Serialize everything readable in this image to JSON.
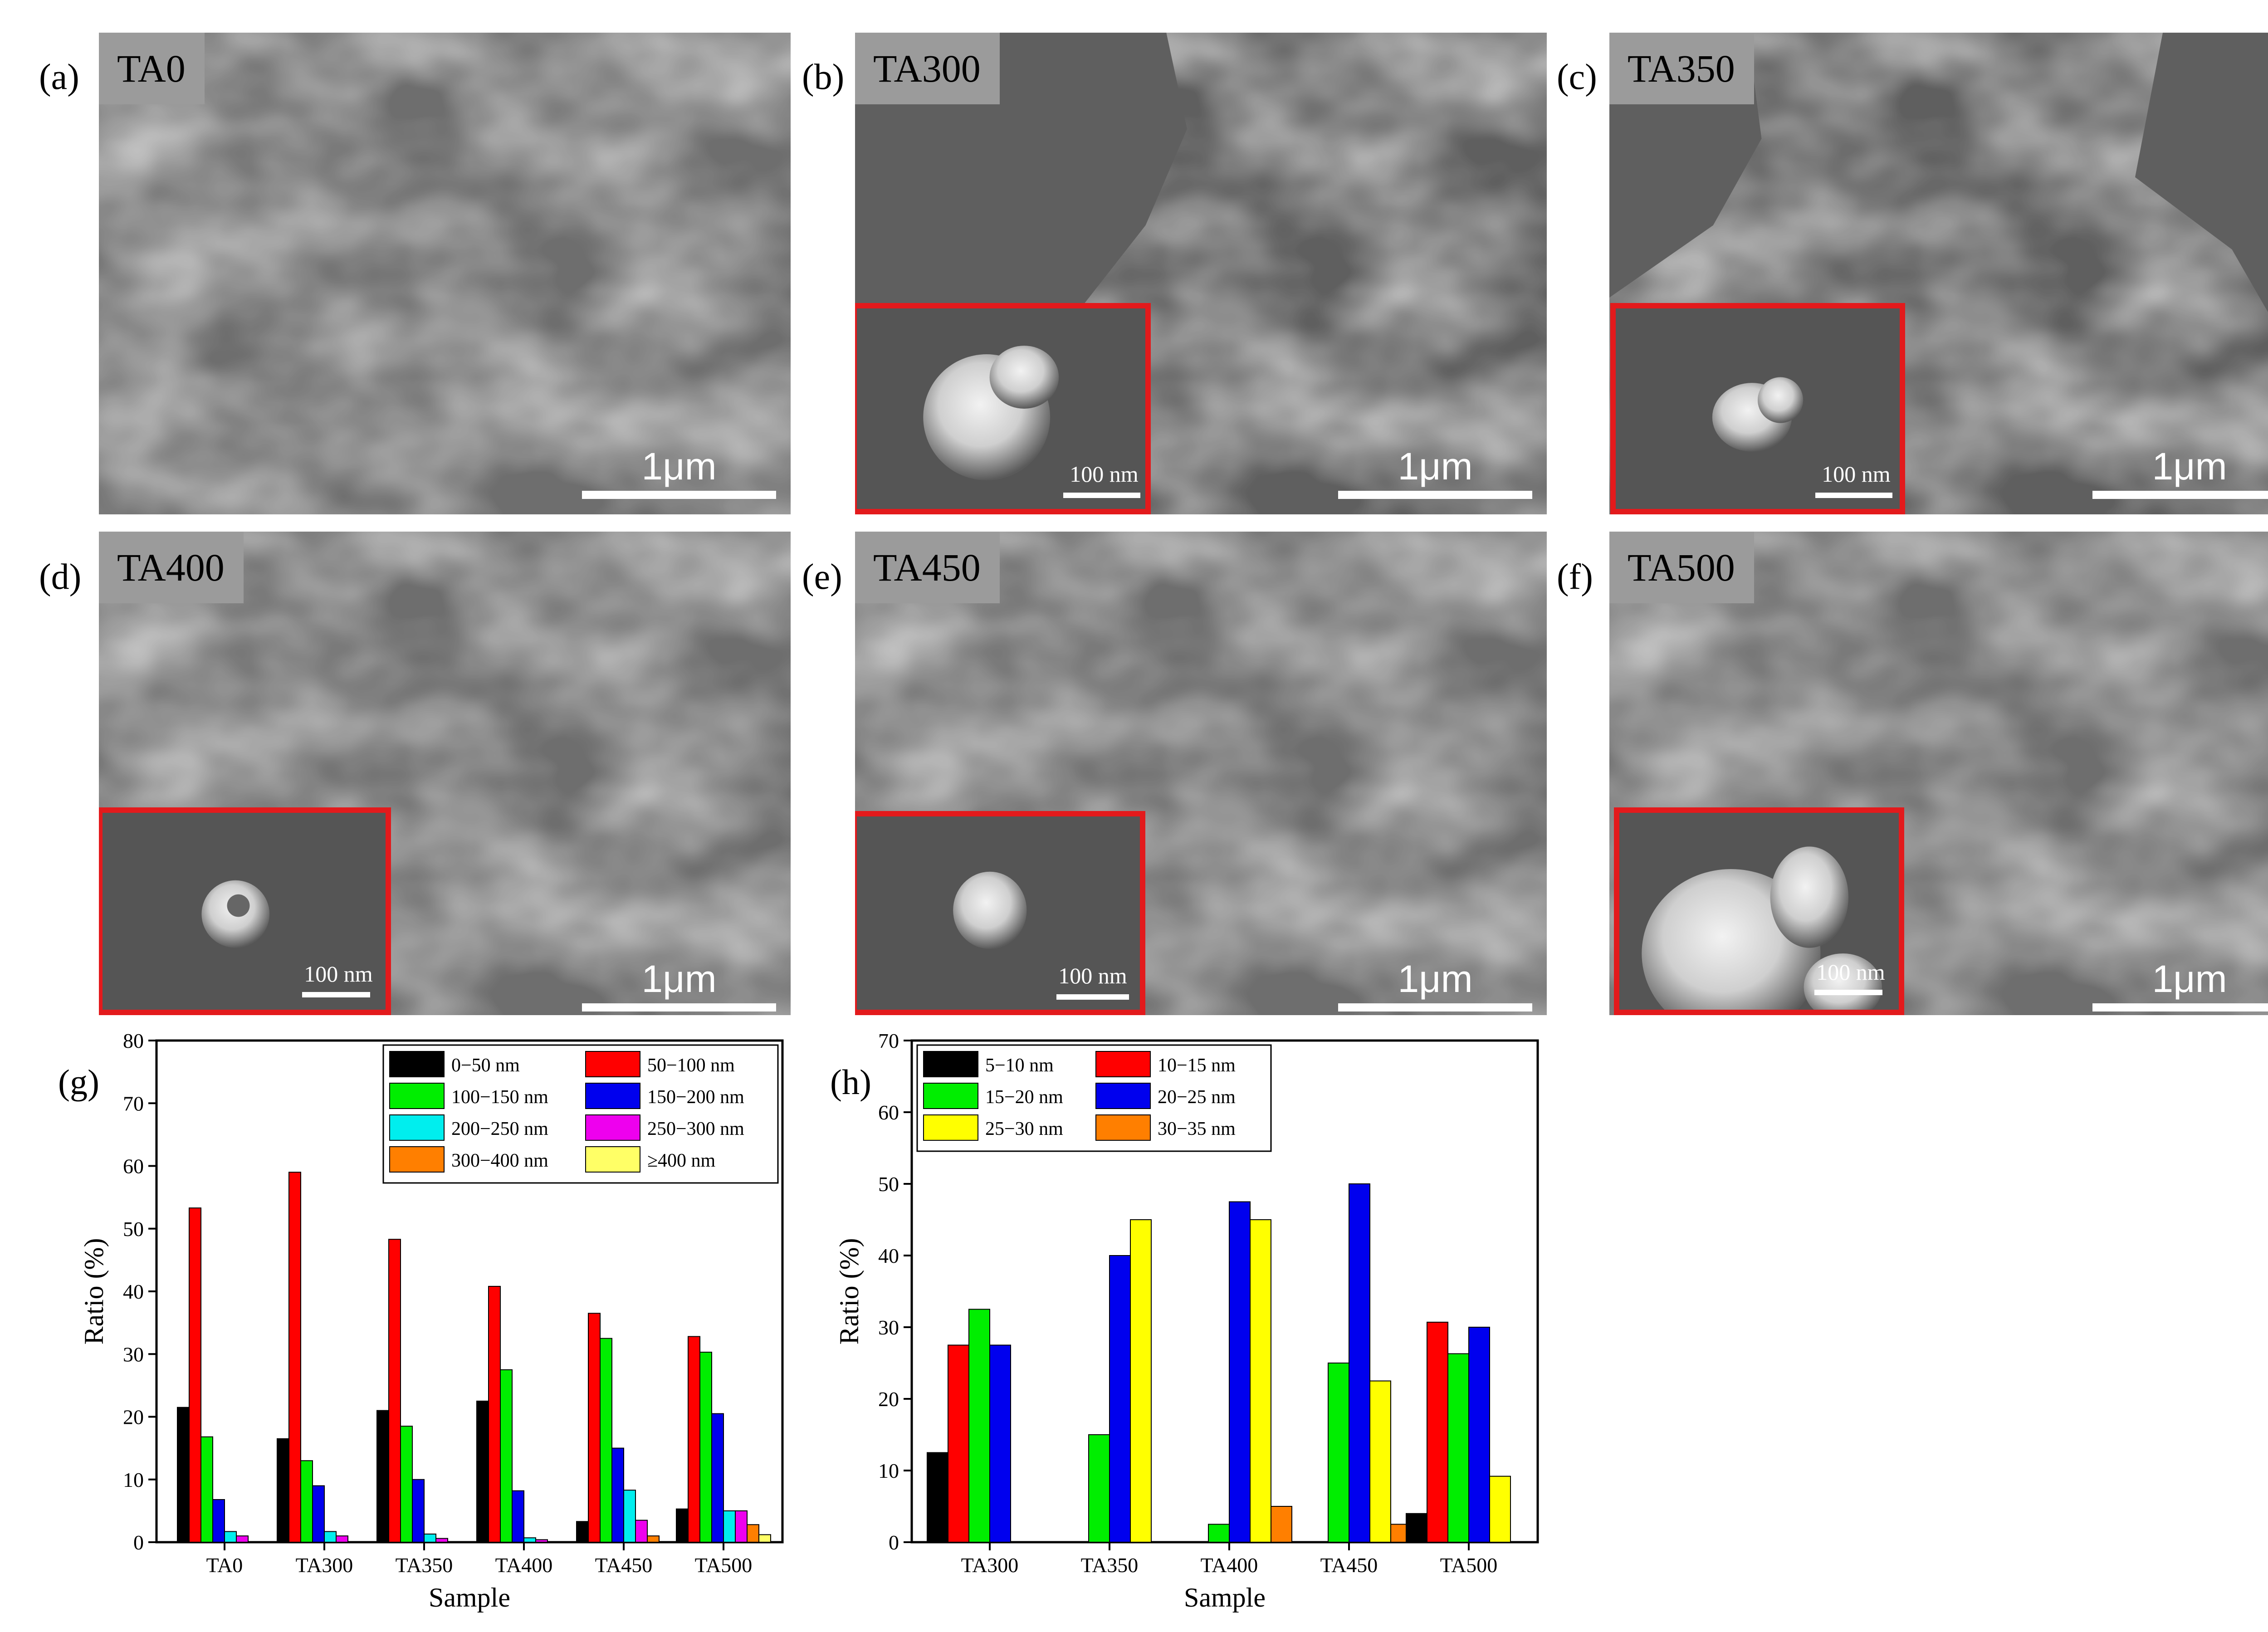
{
  "panels": [
    {
      "letter": "(a)",
      "tag": "TA0",
      "scale": "1μm",
      "inset": null
    },
    {
      "letter": "(b)",
      "tag": "TA300",
      "scale": "1μm",
      "inset": "100 nm"
    },
    {
      "letter": "(c)",
      "tag": "TA350",
      "scale": "1μm",
      "inset": "100 nm"
    },
    {
      "letter": "(d)",
      "tag": "TA400",
      "scale": "1μm",
      "inset": "100 nm"
    },
    {
      "letter": "(e)",
      "tag": "TA450",
      "scale": "1μm",
      "inset": "100 nm"
    },
    {
      "letter": "(f)",
      "tag": "TA500",
      "scale": "1μm",
      "inset": "100 nm"
    }
  ],
  "chart_data": [
    {
      "letter": "(g)",
      "type": "bar",
      "xlabel": "Sample",
      "ylabel": "Ratio (%)",
      "ylim": [
        0,
        80
      ],
      "yticks": [
        0,
        10,
        20,
        30,
        40,
        50,
        60,
        70,
        80
      ],
      "categories": [
        "TA0",
        "TA300",
        "TA350",
        "TA400",
        "TA450",
        "TA500"
      ],
      "legend_position": "top-right",
      "series": [
        {
          "name": "0−50 nm",
          "color": "#000000",
          "values": [
            21.5,
            16.5,
            21,
            22.5,
            3.3,
            5.3
          ]
        },
        {
          "name": "50−100 nm",
          "color": "#ff0000",
          "values": [
            53.3,
            59,
            48.3,
            40.8,
            36.5,
            32.8
          ]
        },
        {
          "name": "100−150 nm",
          "color": "#00ee00",
          "values": [
            16.8,
            13,
            18.5,
            27.5,
            32.5,
            30.3
          ]
        },
        {
          "name": "150−200 nm",
          "color": "#0000ee",
          "values": [
            6.8,
            9,
            10,
            8.2,
            15,
            20.5
          ]
        },
        {
          "name": "200−250 nm",
          "color": "#00eeee",
          "values": [
            1.7,
            1.7,
            1.3,
            0.7,
            8.3,
            5
          ]
        },
        {
          "name": "250−300 nm",
          "color": "#ee00ee",
          "values": [
            1,
            1,
            0.6,
            0.4,
            3.5,
            5
          ]
        },
        {
          "name": "300−400 nm",
          "color": "#ff7f00",
          "values": [
            0,
            0,
            0,
            0,
            1,
            2.8
          ]
        },
        {
          "name": "≥400 nm",
          "color": "#ffff66",
          "values": [
            0,
            0,
            0,
            0,
            0,
            1.2
          ]
        }
      ]
    },
    {
      "letter": "(h)",
      "type": "bar",
      "xlabel": "Sample",
      "ylabel": "Ratio (%)",
      "ylim": [
        0,
        70
      ],
      "yticks": [
        0,
        10,
        20,
        30,
        40,
        50,
        60,
        70
      ],
      "categories": [
        "TA300",
        "TA350",
        "TA400",
        "TA450",
        "TA500"
      ],
      "legend_position": "top-left",
      "series": [
        {
          "name": "5−10 nm",
          "color": "#000000",
          "values": [
            12.5,
            0,
            0,
            0,
            4
          ]
        },
        {
          "name": "10−15 nm",
          "color": "#ff0000",
          "values": [
            27.5,
            0,
            0,
            0,
            30.7
          ]
        },
        {
          "name": "15−20 nm",
          "color": "#00ee00",
          "values": [
            32.5,
            15,
            2.5,
            25,
            26.3
          ]
        },
        {
          "name": "20−25 nm",
          "color": "#0000ee",
          "values": [
            27.5,
            40,
            47.5,
            50,
            30
          ]
        },
        {
          "name": "25−30 nm",
          "color": "#ffff00",
          "values": [
            0,
            45,
            45,
            22.5,
            9.2
          ]
        },
        {
          "name": "30−35 nm",
          "color": "#ff7f00",
          "values": [
            0,
            0,
            5,
            2.5,
            0
          ]
        }
      ]
    }
  ]
}
